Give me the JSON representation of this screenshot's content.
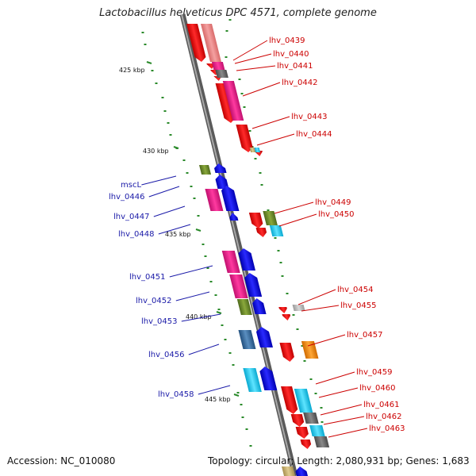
{
  "title": "Lactobacillus helveticus DPC 4571, complete genome",
  "footer": {
    "accession": "Accession: NC_010080",
    "summary": "Topology: circular; Length: 2,080,931 bp; Genes: 1,683"
  },
  "colors": {
    "forward_label": "#1a1aa8",
    "reverse_label": "#cc0000",
    "red": "#e11a1a",
    "blue": "#1a1ad8",
    "pink": "#e8208a",
    "lightred": "#e87a7a",
    "olive": "#6e8a2c",
    "cyan": "#19c8ee",
    "gray": "#6a6a6a",
    "lightgray": "#bdbdbd",
    "steel": "#3a6ea0",
    "orange": "#f08a10",
    "tan": "#c8b070",
    "axis": "#7a7a7a"
  },
  "ticks": [
    {
      "label": "425 kbp"
    },
    {
      "label": "430 kbp"
    },
    {
      "label": "435 kbp"
    },
    {
      "label": "440 kbp"
    },
    {
      "label": "445 kbp"
    }
  ],
  "forward_labels": [
    "mscL",
    "lhv_0446",
    "lhv_0447",
    "lhv_0448",
    "lhv_0451",
    "lhv_0452",
    "lhv_0453",
    "lhv_0456",
    "lhv_0458"
  ],
  "reverse_labels": [
    "lhv_0439",
    "lhv_0440",
    "lhv_0441",
    "lhv_0442",
    "lhv_0443",
    "lhv_0444",
    "lhv_0449",
    "lhv_0450",
    "lhv_0454",
    "lhv_0455",
    "lhv_0457",
    "lhv_0459",
    "lhv_0460",
    "lhv_0461",
    "lhv_0462",
    "lhv_0463"
  ]
}
